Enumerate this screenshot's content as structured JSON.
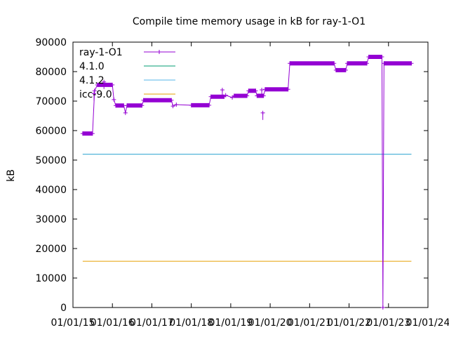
{
  "chart_data": {
    "type": "line",
    "title": "Compile time memory usage in kB for ray-1-O1",
    "xlabel": "",
    "ylabel": "kB",
    "xlim": [
      "2015-01-01",
      "2024-01-01"
    ],
    "ylim": [
      0,
      90000
    ],
    "grid": false,
    "legend_position": "top-left",
    "x_tick_labels": [
      "01/01/15",
      "01/01/16",
      "01/01/17",
      "01/01/18",
      "01/01/19",
      "01/01/20",
      "01/01/21",
      "01/01/22",
      "01/01/23",
      "01/01/24"
    ],
    "y_tick_labels": [
      "0",
      "10000",
      "20000",
      "30000",
      "40000",
      "50000",
      "60000",
      "70000",
      "80000",
      "90000"
    ],
    "series": [
      {
        "name": "ray-1-O1",
        "color": "#9400d3",
        "style": "line-points",
        "points": [
          [
            "2015-04-01",
            59000
          ],
          [
            "2015-07-01",
            59000
          ],
          [
            "2015-07-20",
            73500
          ],
          [
            "2015-08-15",
            75500
          ],
          [
            "2016-01-01",
            75500
          ],
          [
            "2016-01-15",
            70500
          ],
          [
            "2016-02-01",
            68500
          ],
          [
            "2016-04-15",
            68500
          ],
          [
            "2016-05-01",
            66000
          ],
          [
            "2016-05-15",
            68500
          ],
          [
            "2016-10-01",
            68500
          ],
          [
            "2016-10-15",
            70300
          ],
          [
            "2017-07-01",
            70300
          ],
          [
            "2017-07-15",
            68300
          ],
          [
            "2017-08-15",
            68800
          ],
          [
            "2018-01-01",
            68600
          ],
          [
            "2018-06-15",
            68600
          ],
          [
            "2018-07-01",
            71500
          ],
          [
            "2018-11-01",
            71500
          ],
          [
            "2018-11-15",
            72000
          ],
          [
            "2019-01-15",
            71200
          ],
          [
            "2019-02-01",
            71800
          ],
          [
            "2019-06-01",
            71800
          ],
          [
            "2019-06-15",
            73500
          ],
          [
            "2019-08-20",
            73500
          ],
          [
            "2019-09-01",
            71800
          ],
          [
            "2019-11-01",
            71800
          ],
          [
            "2019-11-15",
            74000
          ],
          [
            "2020-06-15",
            74000
          ],
          [
            "2020-07-01",
            82800
          ],
          [
            "2021-08-15",
            82800
          ],
          [
            "2021-09-01",
            80500
          ],
          [
            "2021-12-01",
            80500
          ],
          [
            "2021-12-15",
            82800
          ],
          [
            "2022-06-15",
            82800
          ],
          [
            "2022-07-01",
            85000
          ],
          [
            "2022-11-01",
            85000
          ],
          [
            "2022-11-10",
            0
          ],
          [
            "2022-11-20",
            82800
          ],
          [
            "2023-08-01",
            82800
          ]
        ],
        "spikes": [
          [
            "2015-10-15",
            76500
          ],
          [
            "2015-07-15",
            72500
          ],
          [
            "2018-10-15",
            73800
          ],
          [
            "2019-10-15",
            73800
          ],
          [
            "2019-10-25",
            66000
          ]
        ]
      },
      {
        "name": "4.1.0",
        "color": "#009e73",
        "style": "line",
        "points": [
          [
            "2015-04-01",
            52000
          ],
          [
            "2023-08-01",
            52000
          ]
        ]
      },
      {
        "name": "4.1.2",
        "color": "#56b4e9",
        "style": "line",
        "points": [
          [
            "2015-04-01",
            52000
          ],
          [
            "2023-08-01",
            52000
          ]
        ]
      },
      {
        "name": "icc-9.0",
        "color": "#e69f00",
        "style": "line",
        "points": [
          [
            "2015-04-01",
            15700
          ],
          [
            "2023-08-01",
            15700
          ]
        ]
      }
    ]
  }
}
